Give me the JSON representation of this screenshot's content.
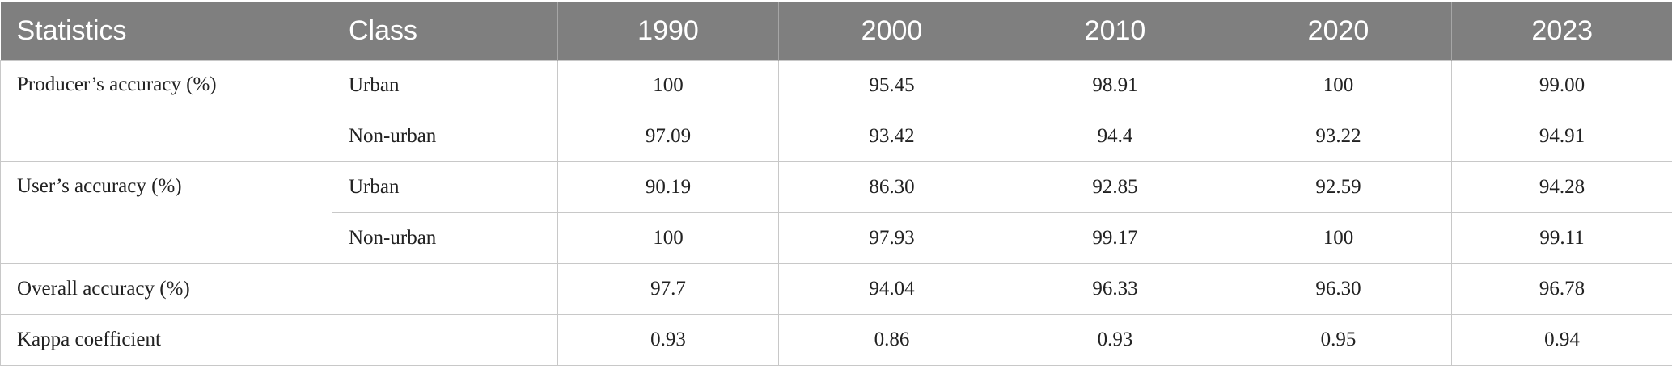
{
  "table": {
    "header": [
      "Statistics",
      "Class",
      "1990",
      "2000",
      "2010",
      "2020",
      "2023"
    ],
    "rows": [
      {
        "statistic": "Producer’s accuracy (%)",
        "groups": [
          {
            "class": "Urban",
            "values": [
              "100",
              "95.45",
              "98.91",
              "100",
              "99.00"
            ]
          },
          {
            "class": "Non-urban",
            "values": [
              "97.09",
              "93.42",
              "94.4",
              "93.22",
              "94.91"
            ]
          }
        ]
      },
      {
        "statistic": "User’s accuracy (%)",
        "groups": [
          {
            "class": "Urban",
            "values": [
              "90.19",
              "86.30",
              "92.85",
              "92.59",
              "94.28"
            ]
          },
          {
            "class": "Non-urban",
            "values": [
              "100",
              "97.93",
              "99.17",
              "100",
              "99.11"
            ]
          }
        ]
      },
      {
        "statistic": "Overall accuracy (%)",
        "values": [
          "97.7",
          "94.04",
          "96.33",
          "96.30",
          "96.78"
        ]
      },
      {
        "statistic": "Kappa coefficient",
        "values": [
          "0.93",
          "0.86",
          "0.93",
          "0.95",
          "0.94"
        ]
      }
    ]
  }
}
